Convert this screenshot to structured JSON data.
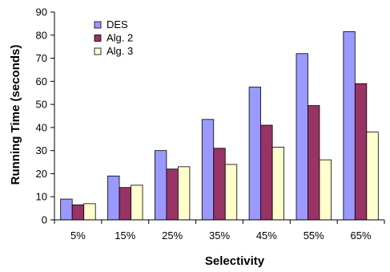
{
  "chart_data": {
    "type": "bar",
    "categories": [
      "5%",
      "15%",
      "25%",
      "35%",
      "45%",
      "55%",
      "65%"
    ],
    "series": [
      {
        "name": "DES",
        "color": "#9999ff",
        "values": [
          9,
          19,
          30,
          43.5,
          57.5,
          72,
          81.5
        ]
      },
      {
        "name": "Alg. 2",
        "color": "#993366",
        "values": [
          6.5,
          14,
          22,
          31,
          41,
          49.5,
          59
        ]
      },
      {
        "name": "Alg. 3",
        "color": "#ffffcc",
        "values": [
          7,
          15,
          23,
          24,
          31.5,
          26,
          38
        ]
      }
    ],
    "xlabel": "Selectivity",
    "ylabel": "Running Time (seconds)",
    "ylim": [
      0,
      90
    ],
    "yticks": [
      0,
      10,
      20,
      30,
      40,
      50,
      60,
      70,
      80,
      90
    ],
    "grid": false,
    "legend": "top-left"
  }
}
